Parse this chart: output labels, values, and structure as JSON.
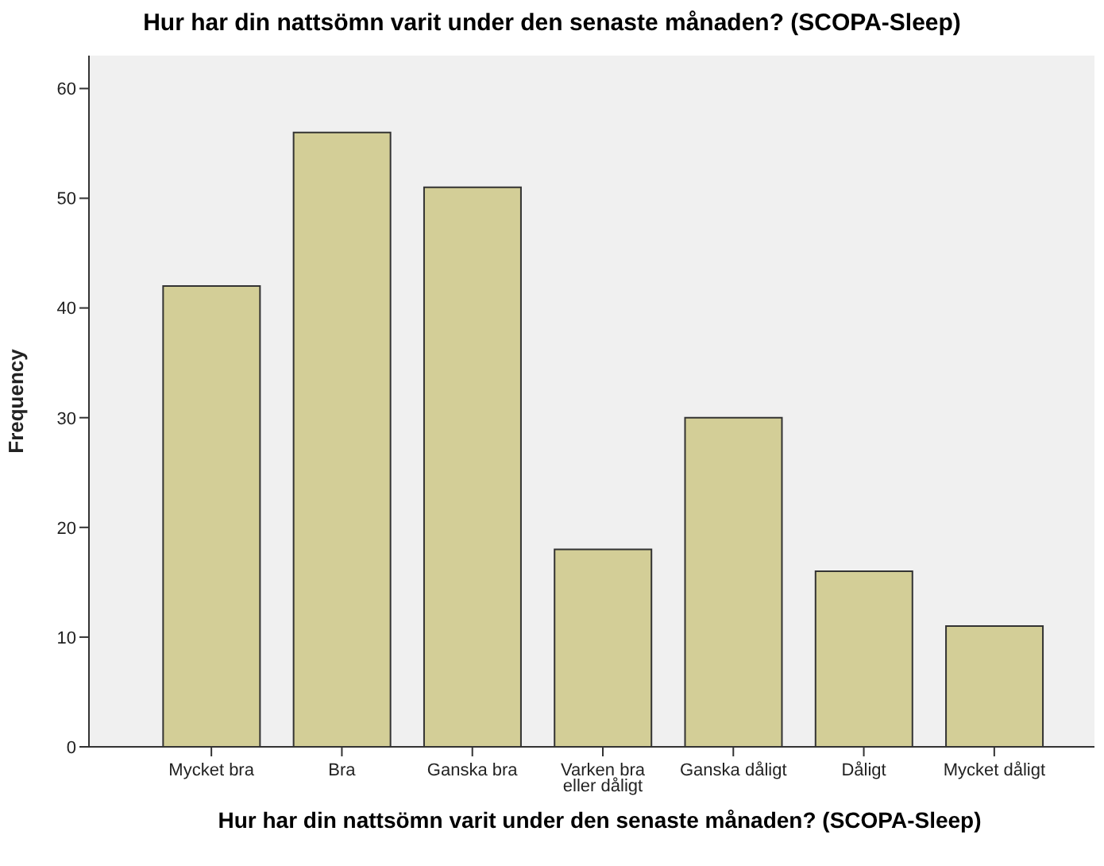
{
  "chart_data": {
    "type": "bar",
    "title": "Hur har din nattsömn varit under den senaste månaden? (SCOPA-Sleep)",
    "xlabel": "Hur har din nattsömn varit under den senaste månaden? (SCOPA-Sleep)",
    "ylabel": "Frequency",
    "categories": [
      "Mycket bra",
      "Bra",
      "Ganska bra",
      "Varken bra eller dåligt",
      "Ganska dåligt",
      "Dåligt",
      "Mycket dåligt"
    ],
    "values": [
      42,
      56,
      51,
      18,
      30,
      16,
      11
    ],
    "color": "#d3ce97",
    "ylim": [
      0,
      63
    ],
    "yticks": [
      0,
      10,
      20,
      30,
      40,
      50,
      60
    ],
    "grid": false
  }
}
